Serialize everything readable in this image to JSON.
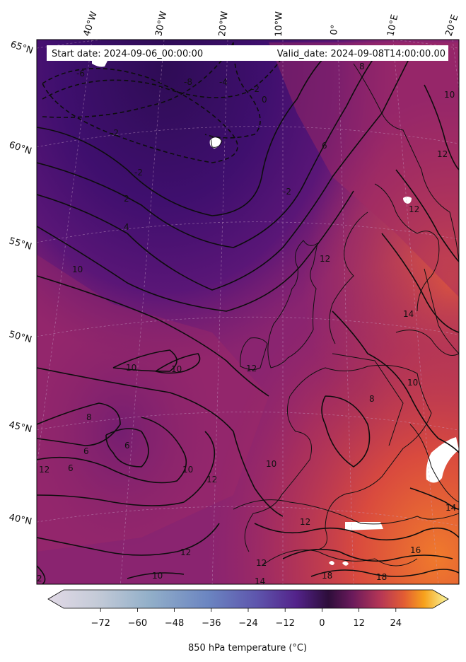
{
  "header": {
    "start_date": "Start date: 2024-09-06_00:00:00",
    "valid_date": "Valid_date: 2024-09-08T14:00:00.00"
  },
  "map": {
    "variable": "850 hPa temperature",
    "longitude_labels": [
      "40°W",
      "30°W",
      "20°W",
      "10°W",
      "0°",
      "10°E",
      "20°E"
    ],
    "latitude_labels": [
      "65°N",
      "60°N",
      "55°N",
      "50°N",
      "45°N",
      "40°N"
    ],
    "contour_labels": [
      "-6",
      "-8",
      "-4",
      "-2",
      "0",
      "-2",
      "6",
      "8",
      "10",
      "12",
      "-2",
      "-2",
      "2",
      "4",
      "10",
      "10",
      "10",
      "12",
      "12",
      "14",
      "10",
      "8",
      "6",
      "6",
      "6",
      "8",
      "10",
      "12",
      "10",
      "12",
      "12",
      "12",
      "14",
      "16",
      "18",
      "18",
      "10",
      "12",
      "14",
      "2",
      "12"
    ],
    "colors": {
      "cold": "#3b0f6f",
      "mid": "#7a1f6f",
      "warm": "#c3345a",
      "hot": "#f06a2a",
      "missing": "#ffffff"
    }
  },
  "colorbar": {
    "label": "850 hPa temperature ($^\\circ$C)",
    "label_display": "850 hPa temperature (°C)",
    "ticks": [
      "-72",
      "-60",
      "-48",
      "-36",
      "-24",
      "-12",
      "0",
      "12",
      "24"
    ],
    "range": [
      -84,
      36
    ],
    "extend": "both",
    "colormap": "diverging twilight-to-inferno"
  }
}
